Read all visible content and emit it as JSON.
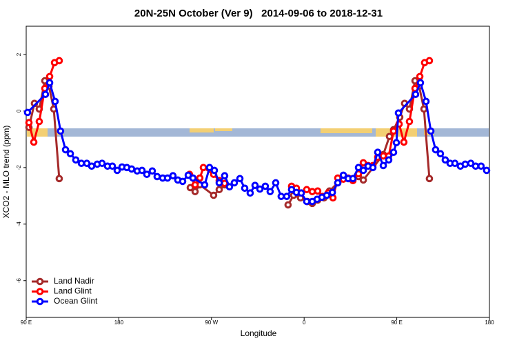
{
  "chart_data": {
    "type": "line",
    "title": "20N-25N October (Ver 9)   2014-09-06 to 2018-12-31",
    "x_label": "Longitude",
    "y_label": "XCO2 - MLO trend (ppm)",
    "xlim": [
      90,
      540
    ],
    "ylim": [
      -7.3,
      3.0
    ],
    "xticks": [
      {
        "value": 90,
        "label": "90 E"
      },
      180,
      {
        "value": 270,
        "label": "90 W"
      },
      {
        "value": 360,
        "label": "0"
      },
      {
        "value": 450,
        "label": "90 E"
      },
      {
        "value": 540,
        "label": "180"
      }
    ],
    "yticks": [
      -6,
      -4,
      -2,
      0,
      2
    ],
    "grid": false,
    "legend": "bottomleft",
    "series": [
      {
        "name": "Land Nadir",
        "color": "#a52a2a",
        "x": [
          92.7,
          98.0,
          102.7,
          108.1,
          112.1,
          116.8,
          122.1,
          null,
          249.4,
          254.1,
          258.7,
          272.1,
          277.5,
          282.8,
          null,
          344.4,
          349.8,
          356.5,
          363.2,
          367.9,
          373.2,
          379.3,
          384.6,
          392.7,
          402.8,
          412.8,
          417.5,
          436.9,
          442.9,
          446.9,
          452.9,
          457.6,
          462.3,
          467.7,
          471.7,
          476.4,
          481.7
        ],
        "values": [
          -0.58,
          0.27,
          0.07,
          1.07,
          0.88,
          0.07,
          -2.39,
          null,
          -2.71,
          -2.85,
          -2.61,
          -2.98,
          -2.78,
          -2.61,
          null,
          -3.32,
          -2.98,
          -3.07,
          -3.2,
          -3.27,
          -3.15,
          -3.07,
          -2.83,
          -2.54,
          -2.39,
          -2.32,
          -2.44,
          -1.54,
          -0.9,
          -0.66,
          -0.22,
          0.27,
          0.07,
          1.07,
          0.88,
          0.07,
          -2.39
        ]
      },
      {
        "name": "Land Glint",
        "color": "#ff0000",
        "x": [
          92.7,
          97.4,
          102.7,
          108.1,
          112.8,
          117.5,
          122.1,
          null,
          248.7,
          254.1,
          258.7,
          262.1,
          272.1,
          277.5,
          282.8,
          null,
          347.8,
          352.5,
          357.2,
          362.5,
          367.9,
          373.2,
          377.9,
          383.3,
          388.0,
          392.7,
          398.1,
          402.8,
          407.4,
          412.8,
          417.5,
          422.1,
          426.8,
          431.5,
          436.9,
          442.2,
          446.9,
          452.3,
          456.9,
          462.3,
          467.7,
          472.4,
          477.0,
          481.7
        ],
        "values": [
          -0.41,
          -1.1,
          -0.37,
          0.8,
          1.22,
          1.71,
          1.78,
          null,
          -2.24,
          -2.61,
          -2.37,
          -2.0,
          -2.24,
          -2.46,
          -2.56,
          null,
          -2.66,
          -2.73,
          -2.9,
          -2.78,
          -2.85,
          -2.83,
          -3.02,
          -2.9,
          -3.07,
          -2.37,
          -2.41,
          -2.37,
          -2.46,
          -2.22,
          -1.83,
          -1.93,
          -1.93,
          -1.63,
          -1.59,
          -1.59,
          -0.71,
          -0.46,
          -1.1,
          -0.37,
          0.8,
          1.22,
          1.71,
          1.78
        ]
      },
      {
        "name": "Ocean Glint",
        "color": "#0000ff",
        "x": [
          91.3,
          108.7,
          112.8,
          118.1,
          123.4,
          128.2,
          132.9,
          138.2,
          143.6,
          148.9,
          153.6,
          159.0,
          163.7,
          169.0,
          173.7,
          178.4,
          183.1,
          187.8,
          192.4,
          197.8,
          202.5,
          207.2,
          212.5,
          217.2,
          222.6,
          227.3,
          232.6,
          237.3,
          242.0,
          247.4,
          252.0,
          263.4,
          268.1,
          272.8,
          277.5,
          282.8,
          287.5,
          292.2,
          297.6,
          302.3,
          307.6,
          312.3,
          317.0,
          322.3,
          327.0,
          332.4,
          337.7,
          343.1,
          347.8,
          352.5,
          357.2,
          362.5,
          367.9,
          372.6,
          377.3,
          382.0,
          387.4,
          392.7,
          398.1,
          402.8,
          407.4,
          412.8,
          417.5,
          422.1,
          426.8,
          431.5,
          436.9,
          442.2,
          446.9,
          449.6,
          451.6,
          468.3,
          473.0,
          478.4,
          483.1,
          487.7,
          492.4,
          497.1,
          501.8,
          506.5,
          511.8,
          516.5,
          521.9,
          526.6,
          531.9,
          537.3
        ],
        "values": [
          -0.05,
          0.59,
          1.0,
          0.34,
          -0.71,
          -1.37,
          -1.51,
          -1.73,
          -1.85,
          -1.85,
          -1.95,
          -1.88,
          -1.85,
          -1.95,
          -1.95,
          -2.1,
          -1.98,
          -2.0,
          -2.05,
          -2.12,
          -2.1,
          -2.24,
          -2.12,
          -2.32,
          -2.37,
          -2.37,
          -2.29,
          -2.44,
          -2.49,
          -2.27,
          -2.37,
          -2.61,
          -2.0,
          -2.1,
          -2.54,
          -2.29,
          -2.68,
          -2.54,
          -2.39,
          -2.73,
          -2.9,
          -2.63,
          -2.76,
          -2.66,
          -2.85,
          -2.54,
          -3.02,
          -3.02,
          -2.78,
          -2.88,
          -2.9,
          -3.2,
          -3.2,
          -3.12,
          -3.05,
          -2.98,
          -2.88,
          -2.54,
          -2.27,
          -2.39,
          -2.39,
          -2.0,
          -2.1,
          -1.95,
          -2.0,
          -1.46,
          -1.93,
          -1.73,
          -1.46,
          -1.12,
          -0.07,
          0.59,
          1.0,
          0.34,
          -0.71,
          -1.37,
          -1.51,
          -1.73,
          -1.85,
          -1.85,
          -1.95,
          -1.88,
          -1.85,
          -1.95,
          -1.95,
          -2.1
        ]
      }
    ]
  }
}
